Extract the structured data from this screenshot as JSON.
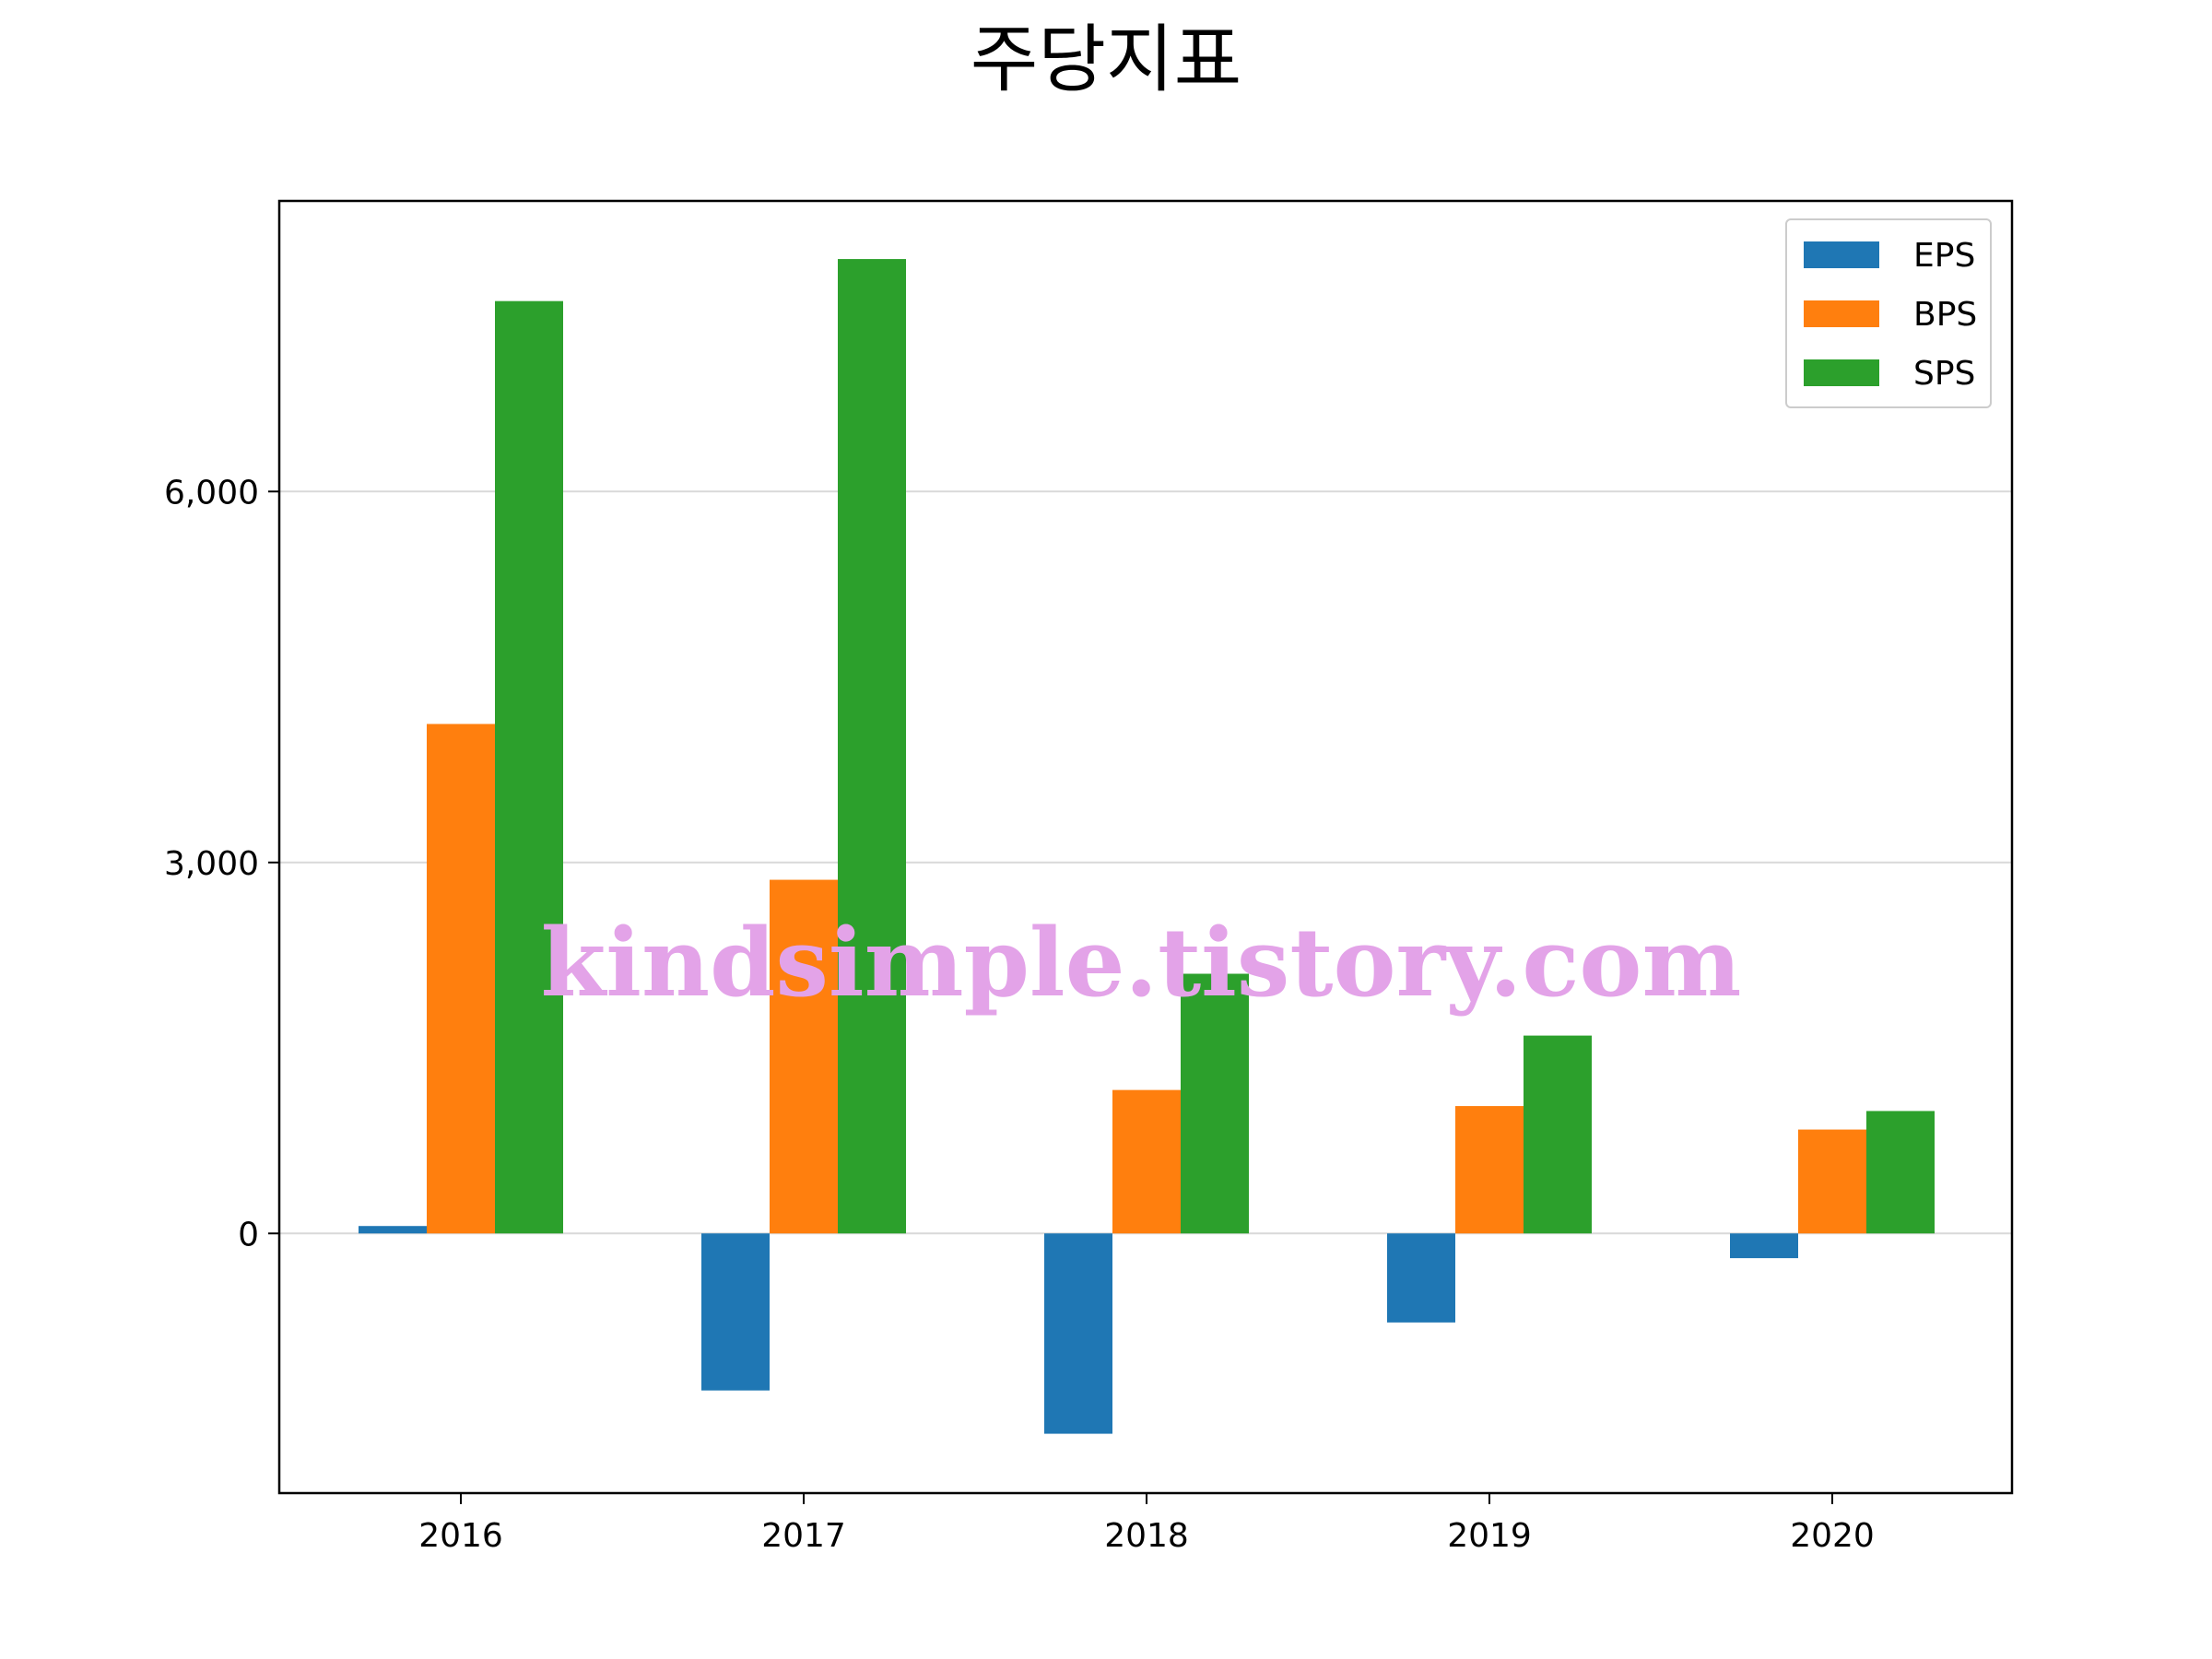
{
  "title": "주당지표",
  "watermark": "kindsimple.tistory.com",
  "chart_data": {
    "type": "bar",
    "categories": [
      "2016",
      "2017",
      "2018",
      "2019",
      "2020"
    ],
    "series": [
      {
        "name": "EPS",
        "color": "#1f77b4",
        "values": [
          60,
          -1270,
          -1620,
          -720,
          -200
        ]
      },
      {
        "name": "BPS",
        "color": "#ff7f0e",
        "values": [
          4120,
          2860,
          1160,
          1030,
          840
        ]
      },
      {
        "name": "SPS",
        "color": "#2ca02c",
        "values": [
          7540,
          7880,
          2100,
          1600,
          990
        ]
      }
    ],
    "yticks": [
      0,
      3000,
      6000
    ],
    "ytick_labels": [
      "0",
      "3,000",
      "6,000"
    ],
    "ylim": [
      -2100,
      8350
    ],
    "grid": "horizontal",
    "legend": "top-right"
  }
}
